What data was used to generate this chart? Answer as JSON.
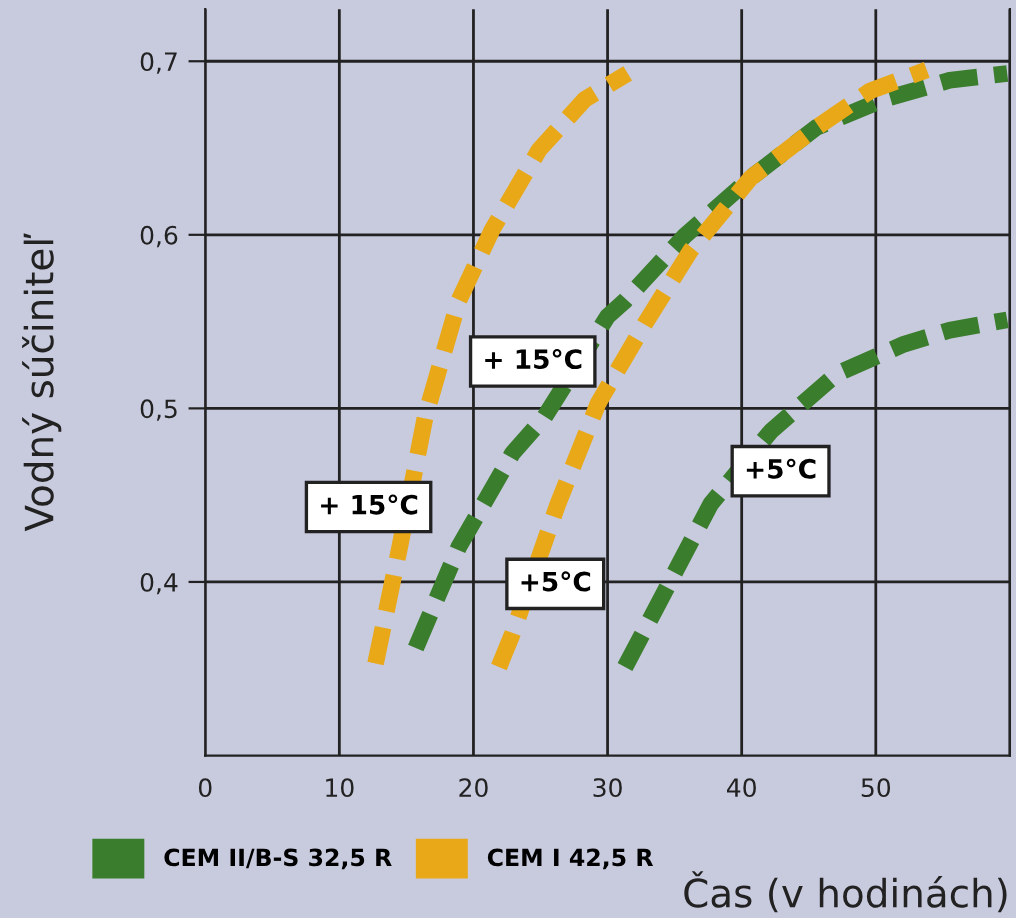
{
  "chart_data": {
    "type": "line",
    "xlabel": "Čas (v hodinách)",
    "ylabel": "Vodný súčiniteľ",
    "xlim": [
      0,
      60
    ],
    "xticks": [
      0,
      10,
      20,
      30,
      40,
      50,
      {
        "value": 60,
        "label": null
      }
    ],
    "ylim": [
      0.3,
      0.73
    ],
    "yticks": [
      {
        "value": 0.4,
        "label": "0,4"
      },
      {
        "value": 0.5,
        "label": "0,5"
      },
      {
        "value": 0.6,
        "label": "0,6"
      },
      {
        "value": 0.7,
        "label": "0,7"
      }
    ],
    "grid": true,
    "legend": "bottom left",
    "line_style": "dashed",
    "marker": "none",
    "series": [
      {
        "name": "CEM II/B-S 32,5 R",
        "color": "#3a7d2c",
        "x": [
          15.7,
          18.9,
          22.9,
          25.3,
          30.0,
          31.3,
          35.7,
          40.7,
          45.6,
          50.6,
          55.5,
          59.8
        ],
        "values": [
          0.362,
          0.42,
          0.474,
          0.495,
          0.553,
          0.562,
          0.599,
          0.633,
          0.662,
          0.678,
          0.689,
          0.693
        ]
      },
      {
        "color": "#3a7d2c",
        "x": [
          31.3,
          34.3,
          37.7,
          42.2,
          47.1,
          52.1,
          55.5,
          59.8
        ],
        "values": [
          0.351,
          0.395,
          0.445,
          0.487,
          0.52,
          0.537,
          0.545,
          0.551
        ]
      },
      {
        "name": "CEM I 42,5 R",
        "color": "#e8a817",
        "x": [
          12.7,
          14.5,
          16.4,
          18.9,
          21.4,
          24.9,
          28.3,
          31.5
        ],
        "values": [
          0.353,
          0.42,
          0.495,
          0.562,
          0.603,
          0.649,
          0.678,
          0.693
        ]
      },
      {
        "color": "#e8a817",
        "x": [
          21.9,
          22.9,
          26.3,
          29.3,
          32.8,
          36.2,
          40.7,
          45.6,
          49.6,
          53.8
        ],
        "values": [
          0.351,
          0.37,
          0.445,
          0.503,
          0.549,
          0.591,
          0.633,
          0.662,
          0.683,
          0.695
        ]
      }
    ],
    "annotations": [
      "+ 15°C",
      "+ 15°C",
      "+5°C",
      "+5°C"
    ]
  }
}
